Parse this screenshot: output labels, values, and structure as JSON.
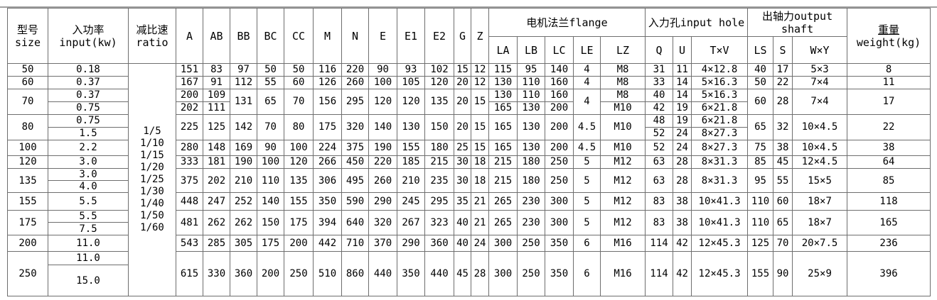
{
  "table": {
    "header": {
      "size": "型号\nsize",
      "input": "入功率\ninput(kw)",
      "ratio": "减比速\nratio",
      "dims": [
        "A",
        "AB",
        "BB",
        "BC",
        "CC",
        "M",
        "N",
        "E",
        "E1",
        "E2",
        "G",
        "Z"
      ],
      "flange": "电机法兰flange",
      "input_hole": "入力孔input hole",
      "output_shaft": "出轴力output\nshaft",
      "weight_cn": "重量",
      "weight_en": "weight(kg)",
      "sub": [
        "LA",
        "LB",
        "LC",
        "LE",
        "LZ",
        "Q",
        "U",
        "T×V",
        "LS",
        "S",
        "W×Y"
      ]
    },
    "ratio_values": "1/5\n1/10\n1/15\n1/20\n1/25\n1/30\n1/40\n1/50\n1/60",
    "rows": [
      [
        "50",
        "0.18",
        {
          "k": "ratio",
          "rs": 16
        },
        "151",
        "83",
        "97",
        "50",
        "50",
        "116",
        "220",
        "90",
        "93",
        "102",
        "15",
        "12",
        "115",
        "95",
        "140",
        "4",
        "M8",
        "31",
        "11",
        "4×12.8",
        "40",
        "17",
        "5×3",
        "8"
      ],
      [
        "60",
        "0.37",
        "167",
        "91",
        "112",
        "55",
        "60",
        "126",
        "260",
        "100",
        "105",
        "120",
        "20",
        "12",
        "130",
        "110",
        "160",
        "4",
        "M8",
        "33",
        "14",
        "5×16.3",
        "50",
        "22",
        "7×4",
        "11"
      ],
      [
        {
          "v": "70",
          "rs": 2
        },
        "0.37",
        "200",
        "109",
        {
          "v": "131",
          "rs": 2
        },
        {
          "v": "65",
          "rs": 2
        },
        {
          "v": "70",
          "rs": 2
        },
        {
          "v": "156",
          "rs": 2
        },
        {
          "v": "295",
          "rs": 2
        },
        {
          "v": "120",
          "rs": 2
        },
        {
          "v": "120",
          "rs": 2
        },
        {
          "v": "135",
          "rs": 2
        },
        {
          "v": "20",
          "rs": 2
        },
        {
          "v": "15",
          "rs": 2
        },
        "130",
        "110",
        "160",
        {
          "v": "4",
          "rs": 2
        },
        "M8",
        "40",
        "14",
        "5×16.3",
        {
          "v": "60",
          "rs": 2
        },
        {
          "v": "28",
          "rs": 2
        },
        {
          "v": "7×4",
          "rs": 2
        },
        {
          "v": "17",
          "rs": 2
        }
      ],
      [
        "0.75",
        "202",
        "111",
        "165",
        "130",
        "200",
        "M10",
        "42",
        "19",
        "6×21.8"
      ],
      [
        {
          "v": "80",
          "rs": 2
        },
        "0.75",
        {
          "v": "225",
          "rs": 2
        },
        {
          "v": "125",
          "rs": 2
        },
        {
          "v": "142",
          "rs": 2
        },
        {
          "v": "70",
          "rs": 2
        },
        {
          "v": "80",
          "rs": 2
        },
        {
          "v": "175",
          "rs": 2
        },
        {
          "v": "320",
          "rs": 2
        },
        {
          "v": "140",
          "rs": 2
        },
        {
          "v": "130",
          "rs": 2
        },
        {
          "v": "150",
          "rs": 2
        },
        {
          "v": "20",
          "rs": 2
        },
        {
          "v": "15",
          "rs": 2
        },
        {
          "v": "165",
          "rs": 2
        },
        {
          "v": "130",
          "rs": 2
        },
        {
          "v": "200",
          "rs": 2
        },
        {
          "v": "4.5",
          "rs": 2
        },
        {
          "v": "M10",
          "rs": 2
        },
        "48",
        "19",
        "6×21.8",
        {
          "v": "65",
          "rs": 2
        },
        {
          "v": "32",
          "rs": 2
        },
        {
          "v": "10×4.5",
          "rs": 2
        },
        {
          "v": "22",
          "rs": 2
        }
      ],
      [
        "1.5",
        "52",
        "24",
        "8×27.3"
      ],
      [
        "100",
        "2.2",
        "280",
        "148",
        "169",
        "90",
        "100",
        "224",
        "375",
        "190",
        "155",
        "180",
        "25",
        "15",
        "165",
        "130",
        "200",
        "4.5",
        "M10",
        "52",
        "24",
        "8×27.3",
        "75",
        "38",
        "10×4.5",
        "38"
      ],
      [
        "120",
        "3.0",
        "333",
        "181",
        "190",
        "100",
        "120",
        "266",
        "450",
        "220",
        "185",
        "215",
        "30",
        "18",
        "215",
        "180",
        "250",
        "5",
        "M12",
        "63",
        "28",
        "8×31.3",
        "85",
        "45",
        "12×4.5",
        "64"
      ],
      [
        {
          "v": "135",
          "rs": 2
        },
        "3.0",
        {
          "v": "375",
          "rs": 2
        },
        {
          "v": "202",
          "rs": 2
        },
        {
          "v": "210",
          "rs": 2
        },
        {
          "v": "110",
          "rs": 2
        },
        {
          "v": "135",
          "rs": 2
        },
        {
          "v": "306",
          "rs": 2
        },
        {
          "v": "495",
          "rs": 2
        },
        {
          "v": "260",
          "rs": 2
        },
        {
          "v": "210",
          "rs": 2
        },
        {
          "v": "235",
          "rs": 2
        },
        {
          "v": "30",
          "rs": 2
        },
        {
          "v": "18",
          "rs": 2
        },
        {
          "v": "215",
          "rs": 2
        },
        {
          "v": "180",
          "rs": 2
        },
        {
          "v": "250",
          "rs": 2
        },
        {
          "v": "5",
          "rs": 2
        },
        {
          "v": "M12",
          "rs": 2
        },
        {
          "v": "63",
          "rs": 2
        },
        {
          "v": "28",
          "rs": 2
        },
        {
          "v": "8×31.3",
          "rs": 2
        },
        {
          "v": "95",
          "rs": 2
        },
        {
          "v": "55",
          "rs": 2
        },
        {
          "v": "15×5",
          "rs": 2
        },
        {
          "v": "85",
          "rs": 2
        }
      ],
      [
        "4.0"
      ],
      [
        "155",
        "5.5",
        "448",
        "247",
        "252",
        "140",
        "155",
        "350",
        "590",
        "290",
        "245",
        "295",
        "35",
        "21",
        "265",
        "230",
        "300",
        "5",
        "M12",
        "83",
        "38",
        "10×41.3",
        "110",
        "60",
        "18×7",
        "118"
      ],
      [
        {
          "v": "175",
          "rs": 2
        },
        "5.5",
        {
          "v": "481",
          "rs": 2
        },
        {
          "v": "262",
          "rs": 2
        },
        {
          "v": "262",
          "rs": 2
        },
        {
          "v": "150",
          "rs": 2
        },
        {
          "v": "175",
          "rs": 2
        },
        {
          "v": "394",
          "rs": 2
        },
        {
          "v": "640",
          "rs": 2
        },
        {
          "v": "320",
          "rs": 2
        },
        {
          "v": "267",
          "rs": 2
        },
        {
          "v": "323",
          "rs": 2
        },
        {
          "v": "40",
          "rs": 2
        },
        {
          "v": "21",
          "rs": 2
        },
        {
          "v": "265",
          "rs": 2
        },
        {
          "v": "230",
          "rs": 2
        },
        {
          "v": "300",
          "rs": 2
        },
        {
          "v": "5",
          "rs": 2
        },
        {
          "v": "M12",
          "rs": 2
        },
        {
          "v": "83",
          "rs": 2
        },
        {
          "v": "38",
          "rs": 2
        },
        {
          "v": "10×41.3",
          "rs": 2
        },
        {
          "v": "110",
          "rs": 2
        },
        {
          "v": "65",
          "rs": 2
        },
        {
          "v": "18×7",
          "rs": 2
        },
        {
          "v": "165",
          "rs": 2
        }
      ],
      [
        "7.5"
      ],
      [
        "200",
        "11.0",
        "543",
        "285",
        "305",
        "175",
        "200",
        "442",
        "710",
        "370",
        "290",
        "360",
        "40",
        "24",
        "300",
        "250",
        "350",
        "6",
        "M16",
        "114",
        "42",
        "12×45.3",
        "125",
        "70",
        "20×7.5",
        "236"
      ],
      [
        {
          "v": "250",
          "rs": 2
        },
        "11.0",
        {
          "v": "615",
          "rs": 2
        },
        {
          "v": "330",
          "rs": 2
        },
        {
          "v": "360",
          "rs": 2
        },
        {
          "v": "200",
          "rs": 2
        },
        {
          "v": "250",
          "rs": 2
        },
        {
          "v": "510",
          "rs": 2
        },
        {
          "v": "860",
          "rs": 2
        },
        {
          "v": "440",
          "rs": 2
        },
        {
          "v": "350",
          "rs": 2
        },
        {
          "v": "440",
          "rs": 2
        },
        {
          "v": "45",
          "rs": 2
        },
        {
          "v": "28",
          "rs": 2
        },
        {
          "v": "300",
          "rs": 2
        },
        {
          "v": "250",
          "rs": 2
        },
        {
          "v": "350",
          "rs": 2
        },
        {
          "v": "6",
          "rs": 2
        },
        {
          "v": "M16",
          "rs": 2
        },
        {
          "v": "114",
          "rs": 2
        },
        {
          "v": "42",
          "rs": 2
        },
        {
          "v": "12×45.3",
          "rs": 2
        },
        {
          "v": "155",
          "rs": 2
        },
        {
          "v": "90",
          "rs": 2
        },
        {
          "v": "25×9",
          "rs": 2
        },
        {
          "v": "396",
          "rs": 2
        }
      ],
      [
        "15.0"
      ]
    ]
  }
}
